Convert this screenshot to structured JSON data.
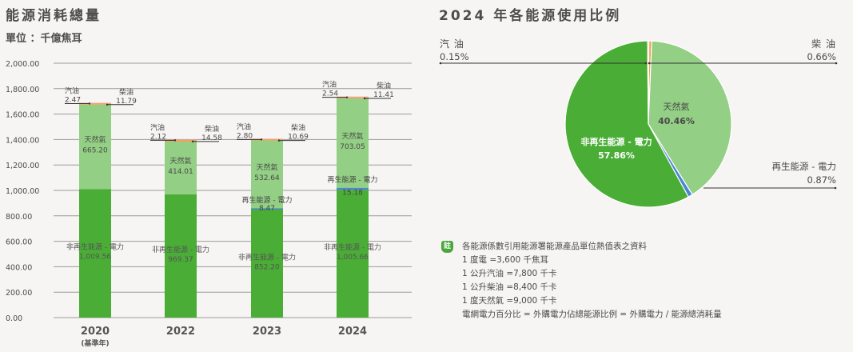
{
  "left_panel": {
    "title": "能源消耗總量",
    "unit": "單位 ：千億焦耳"
  },
  "right_panel": {
    "title": "2024 年各能源使用比例"
  },
  "notes": {
    "badge": "註",
    "lines": [
      "各能源係數引用能源署能源產品單位熱值表之資料",
      "1 度電 =3,600 千焦耳",
      "1 公升汽油 =7,800 千卡",
      "1 公升柴油 =8,400 千卡",
      "1 度天然氣 =9,000 千卡",
      "電網電力百分比 = 外購電力佔總能源比例 = 外購電力 / 能源總消耗量"
    ]
  },
  "colors": {
    "nonrenewable": "#4aad36",
    "renewable": "#4a86d8",
    "natural_gas": "#93cf84",
    "diesel": "#f0a34a",
    "gasoline": "#f1a6c8",
    "grid": "#9a9a9a",
    "text": "#4a4a4a"
  },
  "chart_data": [
    {
      "type": "bar",
      "stacked": true,
      "title": "能源消耗總量",
      "subtitle": "單位 ：千億焦耳",
      "categories": [
        "2020",
        "2022",
        "2023",
        "2024"
      ],
      "category_sublabels": [
        "(基準年)",
        "",
        "",
        ""
      ],
      "ylim": [
        0,
        2000
      ],
      "yticks": [
        0,
        200,
        400,
        600,
        800,
        1000,
        1200,
        1400,
        1600,
        1800,
        2000
      ],
      "ytick_labels": [
        "0.00",
        "200.00",
        "400.00",
        "600.00",
        "800.00",
        "1,000.00",
        "1,200.00",
        "1,400.00",
        "1,600.00",
        "1,800.00",
        "2,000.00"
      ],
      "grid": true,
      "series": [
        {
          "name": "非再生能源 - 電力",
          "key": "nonrenewable",
          "values": [
            1009.56,
            969.37,
            852.2,
            1005.66
          ],
          "labels": [
            "1,009.56",
            "969.37",
            "852.20",
            "1,005.66"
          ]
        },
        {
          "name": "再生能源 - 電力",
          "key": "renewable",
          "values": [
            0,
            0,
            8.47,
            15.18
          ],
          "labels": [
            "",
            "",
            "8.47",
            "15.18"
          ]
        },
        {
          "name": "天然氣",
          "key": "natural_gas",
          "values": [
            665.2,
            414.01,
            532.64,
            703.05
          ],
          "labels": [
            "665.20",
            "414.01",
            "532.64",
            "703.05"
          ]
        },
        {
          "name": "柴油",
          "key": "diesel",
          "values": [
            11.79,
            14.58,
            10.69,
            11.41
          ],
          "labels": [
            "11.79",
            "14.58",
            "10.69",
            "11.41"
          ]
        },
        {
          "name": "汽油",
          "key": "gasoline",
          "values": [
            2.47,
            2.12,
            2.8,
            2.54
          ],
          "labels": [
            "2.47",
            "2.12",
            "2.80",
            "2.54"
          ]
        }
      ]
    },
    {
      "type": "pie",
      "title": "2024 年各能源使用比例",
      "slices": [
        {
          "name": "柴油",
          "display_name": "柴 油",
          "key": "diesel",
          "value": 0.66,
          "label": "0.66%"
        },
        {
          "name": "天然氣",
          "display_name": "天然氣",
          "key": "natural_gas",
          "value": 40.46,
          "label": "40.46%"
        },
        {
          "name": "再生能源 - 電力",
          "display_name": "再生能源 - 電力",
          "key": "renewable",
          "value": 0.87,
          "label": "0.87%"
        },
        {
          "name": "非再生能源 - 電力",
          "display_name": "非再生能源 - 電力",
          "key": "nonrenewable",
          "value": 57.86,
          "label": "57.86%"
        },
        {
          "name": "汽油",
          "display_name": "汽 油",
          "key": "gasoline",
          "value": 0.15,
          "label": "0.15%"
        }
      ]
    }
  ]
}
